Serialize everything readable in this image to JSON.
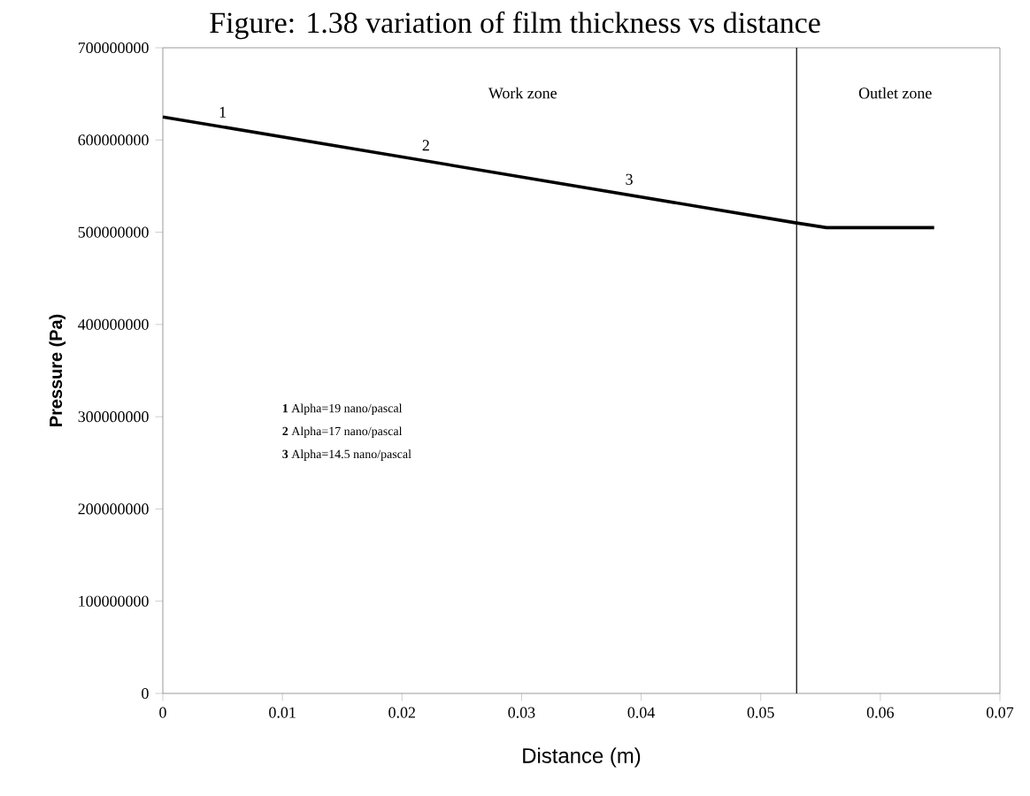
{
  "chart_data": {
    "type": "line",
    "title": "Figure: 1.38 variation of film thickness vs distance",
    "xlabel": "Distance (m)",
    "ylabel": "Pressure (Pa)",
    "series": [
      {
        "color": "#000000",
        "x": [
          0,
          0.053,
          0.0555,
          0.0645
        ],
        "values": [
          625000000,
          510000000,
          505000000,
          505000000
        ]
      }
    ],
    "xlim": [
      0,
      0.07
    ],
    "xticks": [
      0,
      0.01,
      0.02,
      0.03,
      0.04,
      0.05,
      0.06,
      0.07
    ],
    "ylim": [
      0,
      700000000
    ],
    "yticks": [
      0,
      100000000,
      200000000,
      300000000,
      400000000,
      500000000,
      600000000,
      700000000
    ],
    "ref_lines": [
      {
        "axis": "x",
        "value": 0.053,
        "color": "#000000"
      }
    ],
    "annotations": [
      {
        "text": "1",
        "x": 0.005,
        "y": 614000000
      },
      {
        "text": "2",
        "x": 0.022,
        "y": 578000000
      },
      {
        "text": "3",
        "x": 0.039,
        "y": 541000000
      },
      "Work zone",
      "Outlet zone",
      "**1** Alpha=19 nano/pascal",
      "**2** Alpha=17 nano/pascal",
      "**3** Alpha=14.5 nano/pascal"
    ],
    "grid": false,
    "marker": "none",
    "line_style": "solid"
  }
}
